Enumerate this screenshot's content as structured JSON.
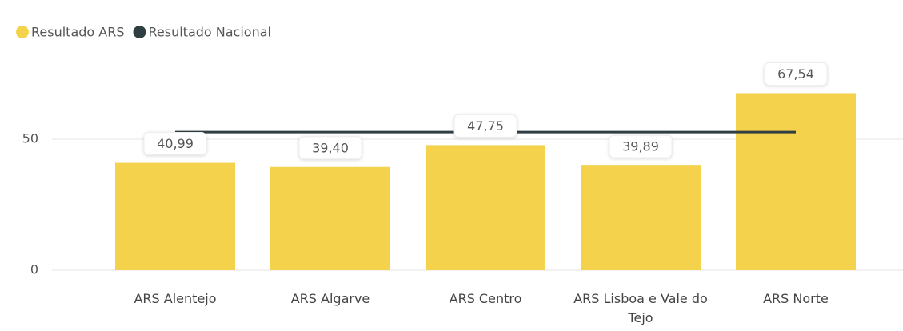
{
  "chart_data": {
    "type": "bar",
    "categories": [
      "ARS Alentejo",
      "ARS Algarve",
      "ARS Centro",
      "ARS Lisboa e Vale do Tejo",
      "ARS Norte"
    ],
    "series": [
      {
        "name": "Resultado ARS",
        "type": "bar",
        "color": "#f4d24b",
        "values": [
          40.99,
          39.4,
          47.75,
          39.89,
          67.54
        ],
        "value_labels": [
          "40,99",
          "39,40",
          "47,75",
          "39,89",
          "67,54"
        ]
      },
      {
        "name": "Resultado Nacional",
        "type": "line",
        "color": "#2f3e42",
        "values": [
          52.7,
          52.7,
          52.7,
          52.7,
          52.7
        ]
      }
    ],
    "ylim": [
      0,
      75
    ],
    "yticks": [
      0,
      50
    ],
    "grid": true,
    "legend": "top-left"
  }
}
